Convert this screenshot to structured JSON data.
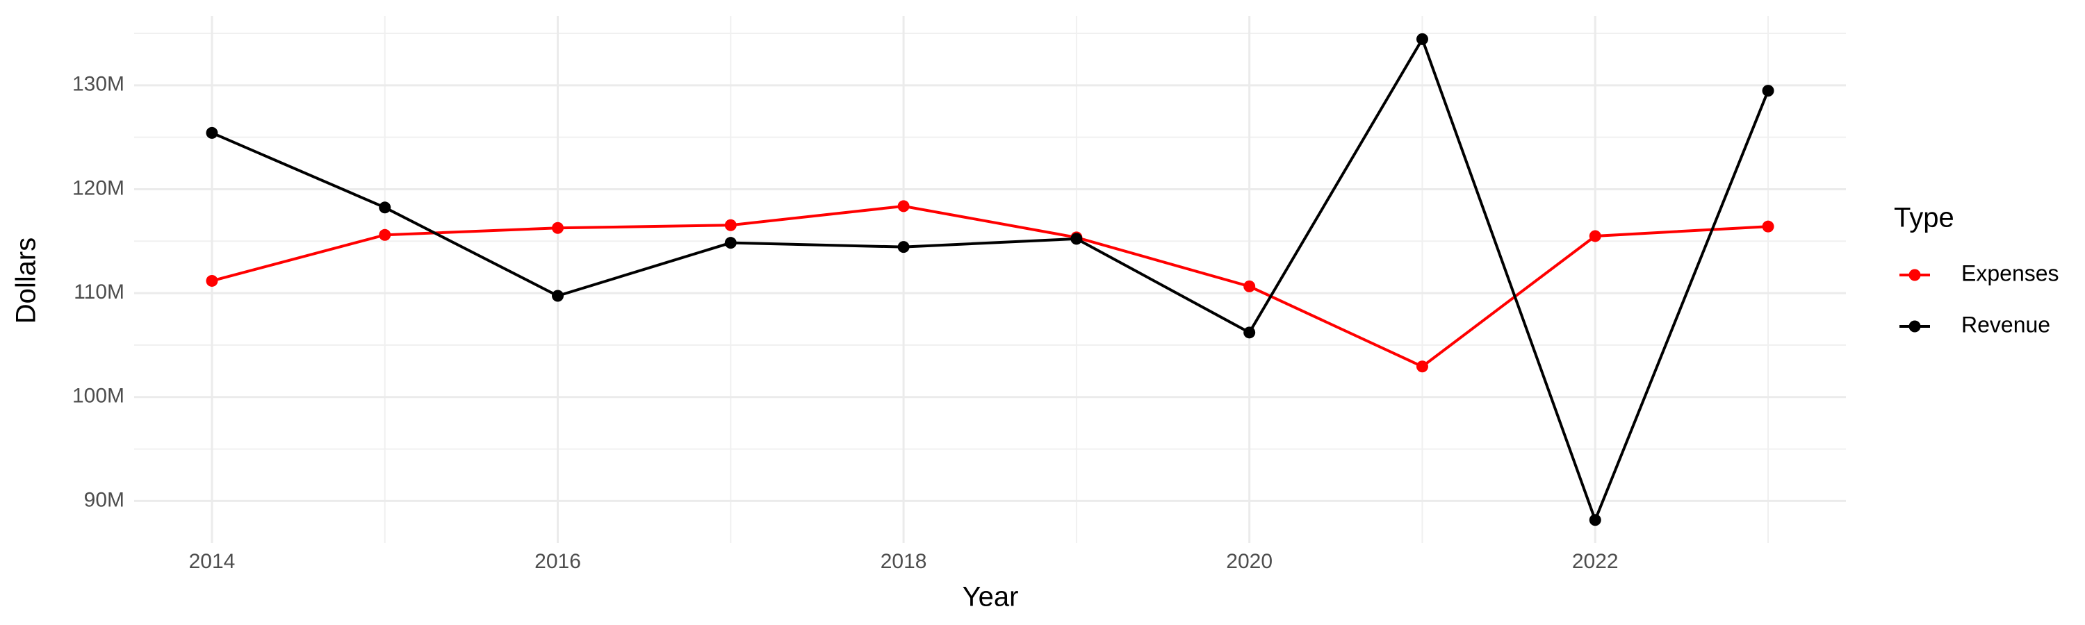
{
  "chart_data": {
    "type": "line",
    "x_label": "Year",
    "y_label": "Dollars",
    "legend_title": "Type",
    "x": [
      2014,
      2015,
      2016,
      2017,
      2018,
      2019,
      2020,
      2021,
      2022,
      2023
    ],
    "series": [
      {
        "name": "Expenses",
        "color": "#ff0000",
        "values": [
          111180000,
          115600000,
          116270000,
          116540000,
          118370000,
          115360000,
          110650000,
          102940000,
          115490000,
          116410000
        ]
      },
      {
        "name": "Revenue",
        "color": "#000000",
        "values": [
          125420000,
          118240000,
          109740000,
          114840000,
          114440000,
          115230000,
          106210000,
          134440000,
          88170000,
          129480000
        ]
      }
    ],
    "xlim": [
      2013.55,
      2023.45
    ],
    "xticks": [
      2014,
      2016,
      2018,
      2020,
      2022
    ],
    "ylim": [
      85950000,
      136670000
    ],
    "yticks": [
      {
        "value": 90000000,
        "label": "90M"
      },
      {
        "value": 100000000,
        "label": "100M"
      },
      {
        "value": 110000000,
        "label": "110M"
      },
      {
        "value": 120000000,
        "label": "120M"
      },
      {
        "value": 130000000,
        "label": "130M"
      }
    ],
    "grid": true,
    "legend": "right"
  }
}
